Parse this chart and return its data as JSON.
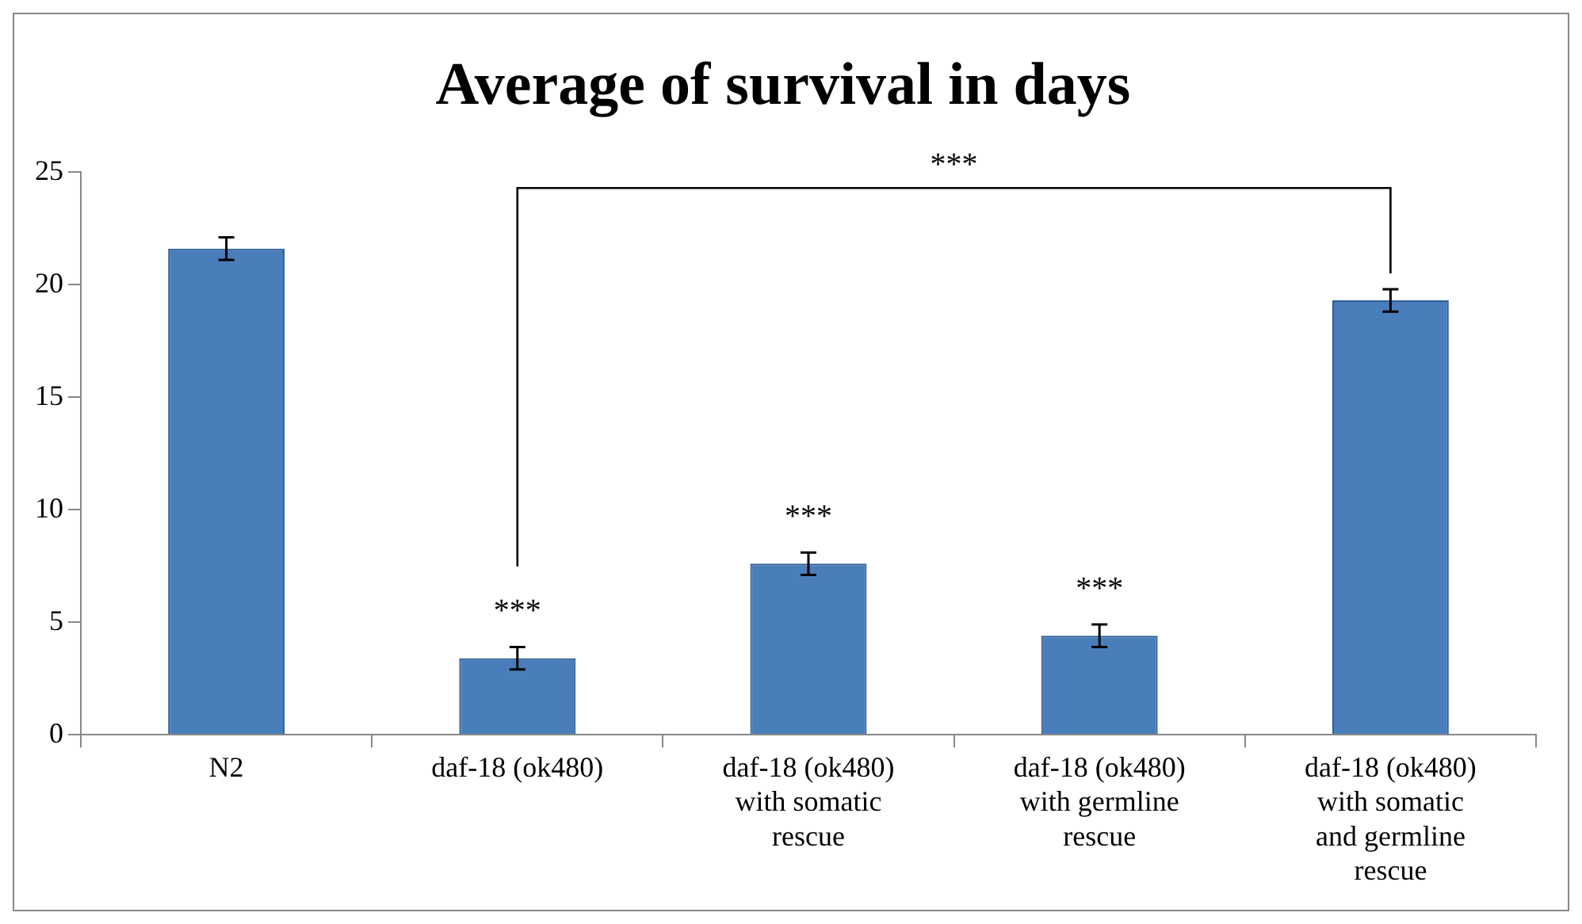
{
  "chart_data": {
    "type": "bar",
    "title": "Average of survival in days",
    "categories": [
      "N2",
      "daf-18 (ok480)",
      "daf-18 (ok480) with somatic rescue",
      "daf-18 (ok480) with germline rescue",
      "daf-18 (ok480) with somatic and germline rescue"
    ],
    "values": [
      21.6,
      3.4,
      7.6,
      4.4,
      19.3
    ],
    "errors": [
      0.5,
      0.5,
      0.5,
      0.5,
      0.5
    ],
    "color": "#4a7ebb",
    "ylim": [
      0,
      25
    ],
    "yticks": [
      0,
      5,
      10,
      15,
      20,
      25
    ],
    "grid": false,
    "legend": false,
    "annotations": [
      {
        "text": "***",
        "x": "daf-18 (ok480)",
        "y": 3.9
      },
      {
        "text": "***",
        "x": "daf-18 (ok480) with somatic rescue",
        "y": 8.1
      },
      {
        "text": "***",
        "x": "daf-18 (ok480) with germline rescue",
        "y": 4.9
      },
      "***"
    ]
  }
}
